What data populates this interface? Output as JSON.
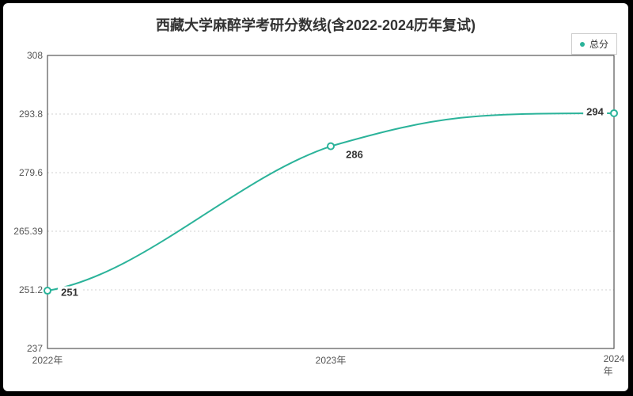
{
  "chart": {
    "type": "line",
    "title": "西藏大学麻醉学考研分数线(含2022-2024历年复试)",
    "title_fontsize": 18,
    "title_fontweight": "bold",
    "background_color": "#ffffff",
    "outer_background": "#000000",
    "plot_border_color": "#333333",
    "plot_border_width": 1,
    "grid_color": "#d0d0d0",
    "grid_dash": "2,3",
    "line_color": "#2bb39a",
    "line_width": 2,
    "marker_style": "circle",
    "marker_radius": 4,
    "marker_fill": "#ffffff",
    "marker_stroke": "#2bb39a",
    "label_fontsize": 12,
    "point_label_fontsize": 13,
    "legend": {
      "label": "总分",
      "swatch_color": "#2bb39a",
      "border_color": "#cccccc",
      "position": "top-right"
    },
    "x": {
      "categories": [
        "2022年",
        "2023年",
        "2024年"
      ]
    },
    "y": {
      "min": 237,
      "max": 308,
      "ticks": [
        237,
        251.2,
        265.39,
        279.6,
        293.8,
        308
      ],
      "tick_labels": [
        "237",
        "251.2",
        "265.39",
        "279.6",
        "293.8",
        "308"
      ]
    },
    "series": [
      {
        "name": "总分",
        "values": [
          251,
          286,
          294
        ],
        "point_labels": [
          "251",
          "286",
          "294"
        ],
        "curve": "smooth"
      }
    ]
  }
}
